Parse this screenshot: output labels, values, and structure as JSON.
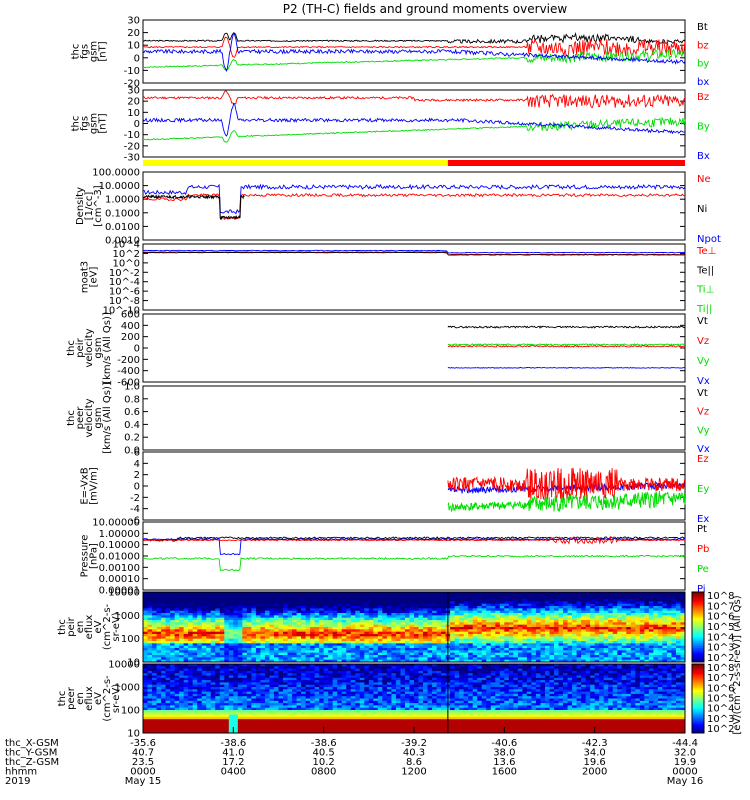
{
  "title": "P2 (TH-C) fields and ground moments overview",
  "colors": {
    "black": "#000000",
    "red": "#ff0000",
    "green": "#00dd00",
    "blue": "#0000ff",
    "yellow": "#ffff00"
  },
  "chart_data": {
    "type": "line",
    "x_ticks": [
      {
        "hhmm": "0000",
        "date": "May 15",
        "x_gsm": "-35.6",
        "y_gsm": "40.7",
        "z_gsm": "23.5"
      },
      {
        "hhmm": "0400",
        "date": "",
        "x_gsm": "-38.6",
        "y_gsm": "41.0",
        "z_gsm": "17.2"
      },
      {
        "hhmm": "0800",
        "date": "",
        "x_gsm": "-38.6",
        "y_gsm": "40.5",
        "z_gsm": "10.2"
      },
      {
        "hhmm": "1200",
        "date": "",
        "x_gsm": "-39.2",
        "y_gsm": "40.3",
        "z_gsm": "8.6"
      },
      {
        "hhmm": "1600",
        "date": "",
        "x_gsm": "-40.6",
        "y_gsm": "38.0",
        "z_gsm": "13.6"
      },
      {
        "hhmm": "2000",
        "date": "",
        "x_gsm": "-42.3",
        "y_gsm": "34.0",
        "z_gsm": "19.6"
      },
      {
        "hhmm": "0000",
        "date": "May 16",
        "x_gsm": "-44.4",
        "y_gsm": "32.0",
        "z_gsm": "19.9"
      }
    ],
    "x_row_labels": [
      "thc_X-GSM",
      "thc_Y-GSM",
      "thc_Z-GSM",
      "hhmm",
      "2019"
    ],
    "bar_segments": [
      {
        "color": "#ffff00",
        "from_hour": 0,
        "to_hour": 13.5
      },
      {
        "color": "#ff0000",
        "from_hour": 13.5,
        "to_hour": 24
      }
    ],
    "panels": [
      {
        "ylabel": [
          "thc",
          "fgs",
          "gsm",
          "[nT]"
        ],
        "ylim": [
          -20,
          30
        ],
        "scale": "linear",
        "yticks": [
          "30",
          "20",
          "10",
          "0",
          "-10",
          "-20"
        ],
        "legend": [
          {
            "text": "Bt",
            "color": "#000000"
          },
          {
            "text": "bz",
            "color": "#ff0000"
          },
          {
            "text": "by",
            "color": "#00dd00"
          },
          {
            "text": "bx",
            "color": "#0000ff"
          }
        ]
      },
      {
        "ylabel": [
          "thc",
          "fgs",
          "gsm",
          "[nT]"
        ],
        "ylim": [
          -30,
          30
        ],
        "scale": "linear",
        "yticks": [
          "30",
          "20",
          "10",
          "0",
          "-10",
          "-20",
          "-30"
        ],
        "legend": [
          {
            "text": "Bz",
            "color": "#ff0000"
          },
          {
            "text": "By",
            "color": "#00dd00"
          },
          {
            "text": "Bx",
            "color": "#0000ff"
          }
        ]
      },
      {
        "ylabel": [
          "Density",
          "[1/cc]",
          "[cm^-3]"
        ],
        "ylim": [
          0.001,
          100
        ],
        "scale": "log",
        "yticks": [
          "100.0000",
          "10.0000",
          "1.0000",
          "0.1000",
          "0.0100",
          "0.0010"
        ],
        "legend": [
          {
            "text": "Ne",
            "color": "#ff0000"
          },
          {
            "text": "Ni",
            "color": "#000000"
          },
          {
            "text": "Npot",
            "color": "#0000ff"
          }
        ]
      },
      {
        "ylabel": [
          "moat3",
          "[eV]"
        ],
        "ylim": [
          1e-10,
          10000
        ],
        "scale": "log",
        "yticks": [
          "10^4",
          "10^2",
          "10^0",
          "10^-2",
          "10^-4",
          "10^-6",
          "10^-8",
          "10^-10"
        ],
        "legend": [
          {
            "text": "Te⊥",
            "color": "#ff0000"
          },
          {
            "text": "Te||",
            "color": "#000000"
          },
          {
            "text": "Ti⊥",
            "color": "#00dd00"
          },
          {
            "text": "Ti||",
            "color": "#00dd00"
          }
        ]
      },
      {
        "ylabel": [
          "thc",
          "peir",
          "velocity",
          "gsm",
          "[km/s (All Qs)]"
        ],
        "ylim": [
          -600,
          600
        ],
        "scale": "linear",
        "yticks": [
          "600",
          "400",
          "200",
          "0",
          "-200",
          "-400",
          "-600"
        ],
        "legend": [
          {
            "text": "Vt",
            "color": "#000000"
          },
          {
            "text": "Vz",
            "color": "#ff0000"
          },
          {
            "text": "Vy",
            "color": "#00dd00"
          },
          {
            "text": "Vx",
            "color": "#0000ff"
          }
        ]
      },
      {
        "ylabel": [
          "thc",
          "peer",
          "velocity",
          "gsm",
          "[km/s (All Qs)]"
        ],
        "ylim": [
          0,
          1
        ],
        "scale": "linear",
        "yticks": [
          "1.0",
          "0.8",
          "0.6",
          "0.4",
          "0.2",
          "0.0"
        ],
        "legend": [
          {
            "text": "Vt",
            "color": "#000000"
          },
          {
            "text": "Vz",
            "color": "#ff0000"
          },
          {
            "text": "Vy",
            "color": "#00dd00"
          },
          {
            "text": "Vx",
            "color": "#0000ff"
          }
        ]
      },
      {
        "ylabel": [
          "E=-VxB",
          "[mV/m]"
        ],
        "ylim": [
          -6,
          6
        ],
        "scale": "linear",
        "yticks": [
          "6",
          "4",
          "2",
          "0",
          "-2",
          "-4",
          "-6"
        ],
        "legend": [
          {
            "text": "Ez",
            "color": "#ff0000"
          },
          {
            "text": "Ey",
            "color": "#00dd00"
          },
          {
            "text": "Ex",
            "color": "#0000ff"
          }
        ]
      },
      {
        "ylabel": [
          "Pressure",
          "[nPa]"
        ],
        "ylim": [
          1e-05,
          10
        ],
        "scale": "log",
        "yticks": [
          "10.00000",
          "1.00000",
          "0.10000",
          "0.01000",
          "0.00100",
          "0.00010",
          "0.00001"
        ],
        "legend": [
          {
            "text": "Pt",
            "color": "#000000"
          },
          {
            "text": "Pb",
            "color": "#ff0000"
          },
          {
            "text": "Pe",
            "color": "#00dd00"
          },
          {
            "text": "Pi",
            "color": "#0000ff"
          }
        ]
      },
      {
        "ylabel": [
          "thc",
          "peir",
          "en",
          "eflux",
          "eV",
          "(cm^2-s-",
          "sr-eV)"
        ],
        "ylim": [
          5,
          20000
        ],
        "scale": "log",
        "spectrogram": true,
        "yticks": [
          "10000",
          "1000",
          "100",
          "10"
        ]
      },
      {
        "ylabel": [
          "thc",
          "peer",
          "en",
          "eflux",
          "eV",
          "(cm^2-s-",
          "sr-eV)"
        ],
        "ylim": [
          5,
          20000
        ],
        "scale": "log",
        "spectrogram": true,
        "yticks": [
          "10000",
          "1000",
          "100",
          "10"
        ]
      }
    ],
    "colorbars": [
      {
        "ticks": [
          "10^8",
          "10^7",
          "10^6",
          "10^5",
          "10^4",
          "10^3",
          "10^2"
        ]
      },
      {
        "ticks": [
          "10^8",
          "10^7",
          "10^6",
          "10^5",
          "10^4",
          "10^3",
          "10^2"
        ]
      }
    ],
    "colorbar_label": "[eV/(cm^2-s-sr-eV)] (All Qs)"
  }
}
